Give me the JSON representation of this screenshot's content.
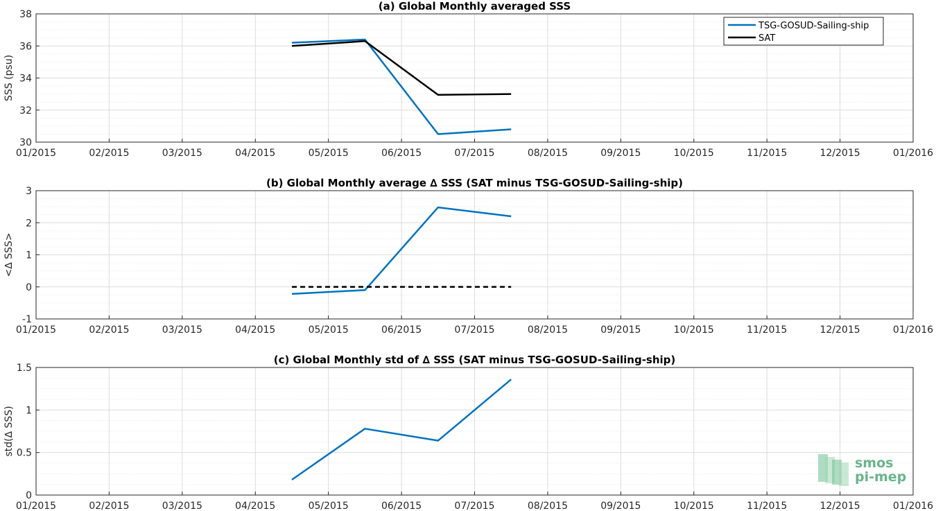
{
  "chart_data": [
    {
      "type": "line",
      "title": "(a) Global Monthly averaged SSS",
      "ylabel": "SSS (psu)",
      "xlabel": "",
      "x_ticks": [
        "01/2015",
        "02/2015",
        "03/2015",
        "04/2015",
        "05/2015",
        "06/2015",
        "07/2015",
        "08/2015",
        "09/2015",
        "10/2015",
        "11/2015",
        "12/2015",
        "01/2016"
      ],
      "y_ticks": [
        "30",
        "32",
        "34",
        "36",
        "38"
      ],
      "ylim": [
        30,
        38
      ],
      "grid": true,
      "legend": "top-right",
      "x": [
        3.5,
        4.5,
        5.5,
        6.5
      ],
      "series": [
        {
          "name": "TSG-GOSUD-Sailing-ship",
          "color": "#0072bd",
          "values": [
            36.2,
            36.4,
            30.5,
            30.8
          ]
        },
        {
          "name": "SAT",
          "color": "#000000",
          "values": [
            36.0,
            36.3,
            32.95,
            33.0
          ]
        }
      ]
    },
    {
      "type": "line",
      "title": "(b) Global Monthly average ∆ SSS (SAT minus TSG-GOSUD-Sailing-ship)",
      "ylabel": "<∆ SSS>",
      "xlabel": "",
      "x_ticks": [
        "01/2015",
        "02/2015",
        "03/2015",
        "04/2015",
        "05/2015",
        "06/2015",
        "07/2015",
        "08/2015",
        "09/2015",
        "10/2015",
        "11/2015",
        "12/2015",
        "01/2016"
      ],
      "y_ticks": [
        "-1",
        "0",
        "1",
        "2",
        "3"
      ],
      "ylim": [
        -1,
        3
      ],
      "grid": true,
      "x": [
        3.5,
        4.5,
        5.5,
        6.5
      ],
      "series": [
        {
          "color": "#0072bd",
          "style": "solid",
          "values": [
            -0.22,
            -0.1,
            2.48,
            2.2
          ]
        },
        {
          "color": "#000000",
          "style": "dashed",
          "values": [
            0,
            0,
            0,
            0
          ]
        }
      ]
    },
    {
      "type": "line",
      "title": "(c) Global Monthly std of ∆ SSS (SAT minus TSG-GOSUD-Sailing-ship)",
      "ylabel": "std(∆ SSS)",
      "xlabel": "",
      "x_ticks": [
        "01/2015",
        "02/2015",
        "03/2015",
        "04/2015",
        "05/2015",
        "06/2015",
        "07/2015",
        "08/2015",
        "09/2015",
        "10/2015",
        "11/2015",
        "12/2015",
        "01/2016"
      ],
      "y_ticks": [
        "0",
        "0.5",
        "1",
        "1.5"
      ],
      "ylim": [
        0,
        1.5
      ],
      "grid": true,
      "x": [
        3.5,
        4.5,
        5.5,
        6.5
      ],
      "series": [
        {
          "color": "#0072bd",
          "style": "solid",
          "values": [
            0.18,
            0.78,
            0.64,
            1.36
          ]
        }
      ]
    }
  ],
  "logo": {
    "line1": "smos",
    "line2": "pi-mep"
  }
}
